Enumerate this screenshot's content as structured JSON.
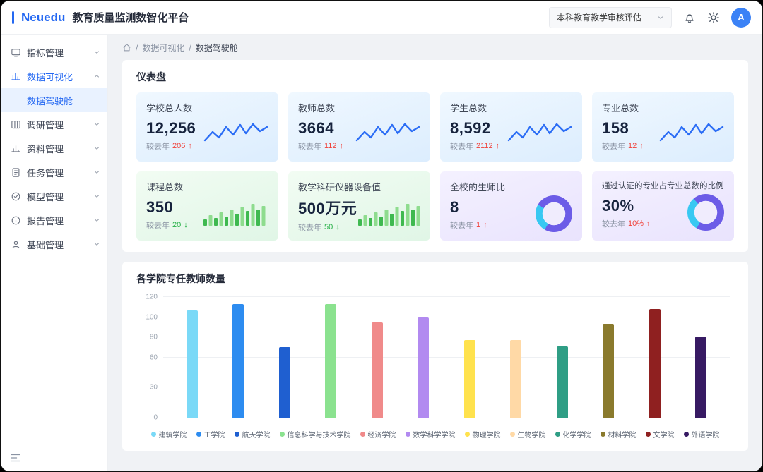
{
  "brand": {
    "logo": "Neuedu",
    "title": "教育质量监测数智化平台"
  },
  "header": {
    "project_select": "本科教育教学审核评估",
    "avatar_text": "A"
  },
  "sidebar": {
    "items": [
      {
        "label": "指标管理",
        "icon": "monitor-icon",
        "type": "group"
      },
      {
        "label": "数据可视化",
        "icon": "bar-chart-icon",
        "type": "group",
        "active": true,
        "expanded": true
      },
      {
        "label": "数据驾驶舱",
        "type": "child",
        "selected": true
      },
      {
        "label": "调研管理",
        "icon": "board-icon",
        "type": "group"
      },
      {
        "label": "资料管理",
        "icon": "column-chart-icon",
        "type": "group"
      },
      {
        "label": "任务管理",
        "icon": "document-icon",
        "type": "group"
      },
      {
        "label": "模型管理",
        "icon": "check-circle-icon",
        "type": "group"
      },
      {
        "label": "报告管理",
        "icon": "info-circle-icon",
        "type": "group"
      },
      {
        "label": "基础管理",
        "icon": "user-icon",
        "type": "group"
      }
    ]
  },
  "breadcrumb": {
    "items": [
      "数据可视化",
      "数据驾驶舱"
    ]
  },
  "dashboard": {
    "title": "仪表盘",
    "compare_label": "较去年",
    "stats": [
      {
        "label": "学校总人数",
        "value": "12,256",
        "delta": "206",
        "dir": "up",
        "viz": "line",
        "theme": "blue"
      },
      {
        "label": "教师总数",
        "value": "3664",
        "delta": "112",
        "dir": "up",
        "viz": "line",
        "theme": "blue"
      },
      {
        "label": "学生总数",
        "value": "8,592",
        "delta": "2112",
        "dir": "up",
        "viz": "line",
        "theme": "blue"
      },
      {
        "label": "专业总数",
        "value": "158",
        "delta": "12",
        "dir": "up",
        "viz": "line",
        "theme": "blue"
      },
      {
        "label": "课程总数",
        "value": "350",
        "delta": "20",
        "dir": "down",
        "viz": "bars",
        "theme": "green"
      },
      {
        "label": "教学科研仪器设备值",
        "value": "500万元",
        "delta": "50",
        "dir": "down",
        "viz": "bars",
        "theme": "green"
      },
      {
        "label": "全校的生师比",
        "value": "8",
        "delta": "1",
        "dir": "up",
        "viz": "donut",
        "theme": "purple",
        "donut_pct": 25
      },
      {
        "label": "通过认证的专业占专业总数的比例",
        "value": "30%",
        "delta": "10%",
        "dir": "up",
        "viz": "donut",
        "theme": "purple",
        "donut_pct": 30
      }
    ]
  },
  "chart_data": {
    "type": "bar",
    "title": "各学院专任教师数量",
    "categories": [
      "建筑学院",
      "工学院",
      "航天学院",
      "信息科学与技术学院",
      "经济学院",
      "数学科学学院",
      "物理学院",
      "生物学院",
      "化学学院",
      "材料学院",
      "文学院",
      "外语学院"
    ],
    "values": [
      107,
      113,
      70,
      113,
      95,
      100,
      77,
      77,
      71,
      93,
      108,
      81
    ],
    "colors": [
      "#7ad9f7",
      "#2d8cf0",
      "#1f5fd0",
      "#8be28f",
      "#f08a8a",
      "#b28af0",
      "#ffe24d",
      "#ffd9a6",
      "#2f9e85",
      "#8a7a2d",
      "#8f2020",
      "#371a63"
    ],
    "xlabel": "",
    "ylabel": "",
    "ylim": [
      0,
      120
    ],
    "yticks": [
      0,
      30,
      60,
      80,
      100,
      120
    ],
    "grid": true,
    "legend_position": "bottom"
  },
  "colors": {
    "accent": "#2468f2",
    "up": "#f0423b",
    "down": "#27b148",
    "sparkline": "#2b6df5",
    "donut_main": "#6c5ce7",
    "donut_alt": "#38c8f2"
  }
}
